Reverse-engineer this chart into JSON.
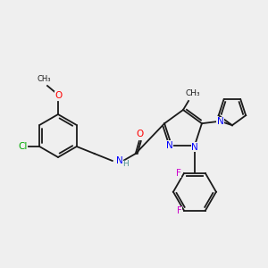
{
  "background_color": "#efefef",
  "bond_color": "#1a1a1a",
  "atom_colors": {
    "O": "#ff0000",
    "N": "#0000ff",
    "Cl": "#00aa00",
    "F": "#cc00cc",
    "H": "#4a9090",
    "C": "#1a1a1a"
  },
  "font_size": 7.5,
  "line_width": 1.3
}
